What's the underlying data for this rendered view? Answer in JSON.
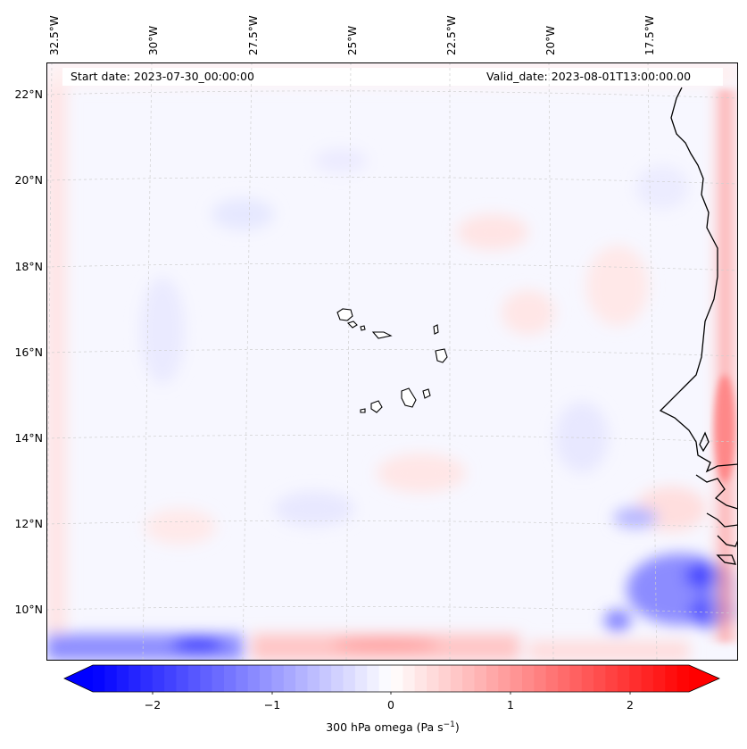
{
  "header": {
    "start_date": "Start date: 2023-07-30_00:00:00",
    "valid_date": "Valid_date: 2023-08-01T13:00:00.00"
  },
  "lon_labels": [
    "32.5°W",
    "30°W",
    "27.5°W",
    "25°W",
    "22.5°W",
    "20°W",
    "17.5°W"
  ],
  "lat_labels": [
    "22°N",
    "20°N",
    "18°N",
    "16°N",
    "14°N",
    "12°N",
    "10°N"
  ],
  "colorbar": {
    "title": "300 hPa omega (Pa s",
    "title_sup": "−1",
    "title_end": ")",
    "ticks": [
      "−2",
      "−1",
      "0",
      "1",
      "2"
    ],
    "vmin": -2.5,
    "vmax": 2.5,
    "colors": {
      "low": "#0000ff",
      "mid": "#ffffff",
      "high": "#ff0000"
    }
  },
  "colors": {
    "coast": "#000000",
    "grid": "#c8c8c8",
    "frame": "#000000"
  }
}
